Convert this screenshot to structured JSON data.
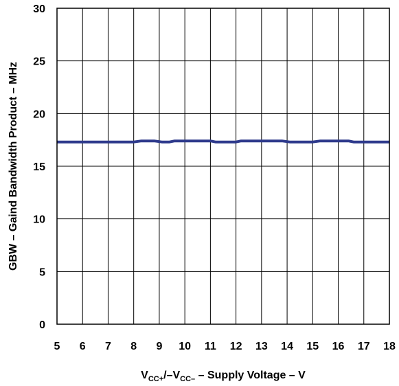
{
  "chart_data": {
    "type": "line",
    "title": "",
    "xlabel": {
      "prefix": "V",
      "sub1": "CC+",
      "mid": "/–V",
      "sub2": "CC–",
      "suffix": " – Supply Voltage – V"
    },
    "ylabel": "GBW – Gaind Bandwidth Product – MHz",
    "xlim": [
      5,
      18
    ],
    "ylim": [
      0,
      30
    ],
    "xticks": [
      5,
      6,
      7,
      8,
      9,
      10,
      11,
      12,
      13,
      14,
      15,
      16,
      17,
      18
    ],
    "yticks": [
      0,
      5,
      10,
      15,
      20,
      25,
      30
    ],
    "grid": true,
    "series": [
      {
        "color": "#2e3a8c",
        "x": [
          5,
          6,
          7,
          8,
          8.3,
          8.8,
          9.1,
          9.4,
          9.6,
          10,
          11,
          11.2,
          12,
          12.2,
          13,
          13.8,
          14.1,
          15,
          15.3,
          16,
          16.4,
          16.6,
          17,
          18
        ],
        "y": [
          17.3,
          17.3,
          17.3,
          17.3,
          17.4,
          17.4,
          17.3,
          17.3,
          17.4,
          17.4,
          17.4,
          17.3,
          17.3,
          17.4,
          17.4,
          17.4,
          17.3,
          17.3,
          17.4,
          17.4,
          17.4,
          17.3,
          17.3,
          17.3
        ]
      }
    ]
  }
}
